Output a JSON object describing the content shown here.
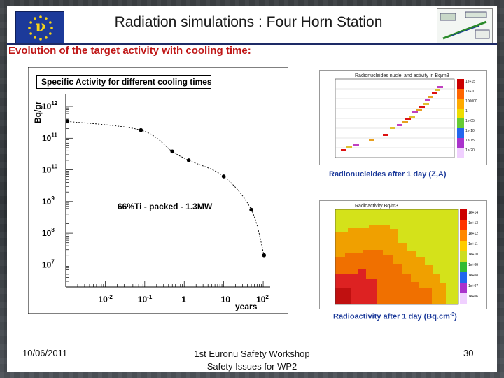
{
  "header": {
    "title": "Radiation simulations : Four Horn Station",
    "eu_symbol": "ν"
  },
  "subtitle": "Evolution of the target activity with cooling time:",
  "chart_data": [
    {
      "type": "scatter",
      "title": "Specific Activity for different cooling times",
      "xlabel": "years",
      "ylabel": "Bq/gr",
      "x_scale": "log",
      "y_scale": "log",
      "xlim": [
        0.001,
        150
      ],
      "ylim": [
        2000000,
        2500000000000
      ],
      "x_ticks": [
        {
          "value": 0.01,
          "label": "10",
          "exp": "-2"
        },
        {
          "value": 0.1,
          "label": "10",
          "exp": "-1"
        },
        {
          "value": 1,
          "label": "1",
          "exp": ""
        },
        {
          "value": 10,
          "label": "10",
          "exp": ""
        },
        {
          "value": 100,
          "label": "10",
          "exp": "2"
        }
      ],
      "y_ticks": [
        {
          "value": 1000000000000,
          "label": "10",
          "exp": "12"
        },
        {
          "value": 100000000000,
          "label": "10",
          "exp": "11"
        },
        {
          "value": 10000000000,
          "label": "10",
          "exp": "10"
        },
        {
          "value": 1000000000,
          "label": "10",
          "exp": "9"
        },
        {
          "value": 100000000,
          "label": "10",
          "exp": "8"
        },
        {
          "value": 10000000,
          "label": "10",
          "exp": "7"
        }
      ],
      "points": [
        {
          "x": 0.0011,
          "y": 340000000000
        },
        {
          "x": 0.08,
          "y": 180000000000
        },
        {
          "x": 0.5,
          "y": 38000000000
        },
        {
          "x": 1.3,
          "y": 20000000000
        },
        {
          "x": 10,
          "y": 6200000000
        },
        {
          "x": 50,
          "y": 550000000
        },
        {
          "x": 105,
          "y": 20000000
        }
      ],
      "annotation": "66%Ti - packed - 1.3MW",
      "grid": false,
      "line_style": "dashed"
    },
    {
      "type": "scatter",
      "title": "Radionucleides nuclei and activity in Bq/m3",
      "caption": "Radionucleides after 1 day (Z,A)",
      "legend": [
        "1e+15",
        "1e+10",
        "100000",
        "1",
        "1e-05",
        "1e-10",
        "1e-15",
        "1e-20"
      ]
    },
    {
      "type": "heatmap",
      "title": "Radioactivity Bq/m3",
      "caption": "Radioactivity after 1 day (Bq.cm",
      "caption_exp": "-3",
      "caption_end": ")",
      "legend": [
        "1e+14",
        "1e+13",
        "1e+12",
        "1e+11",
        "1e+10",
        "1e+09",
        "1e+08",
        "1e+07",
        "1e+06"
      ]
    }
  ],
  "footer": {
    "date": "10/06/2011",
    "event_line1": "1st Euronu Safety Workshop",
    "event_line2": "Safety Issues for WP2",
    "page": "30"
  },
  "colors": {
    "title_red": "#c01818",
    "caption_blue": "#1c3a9a",
    "eu_blue": "#1c3a9a",
    "eu_gold": "#f7d417"
  }
}
